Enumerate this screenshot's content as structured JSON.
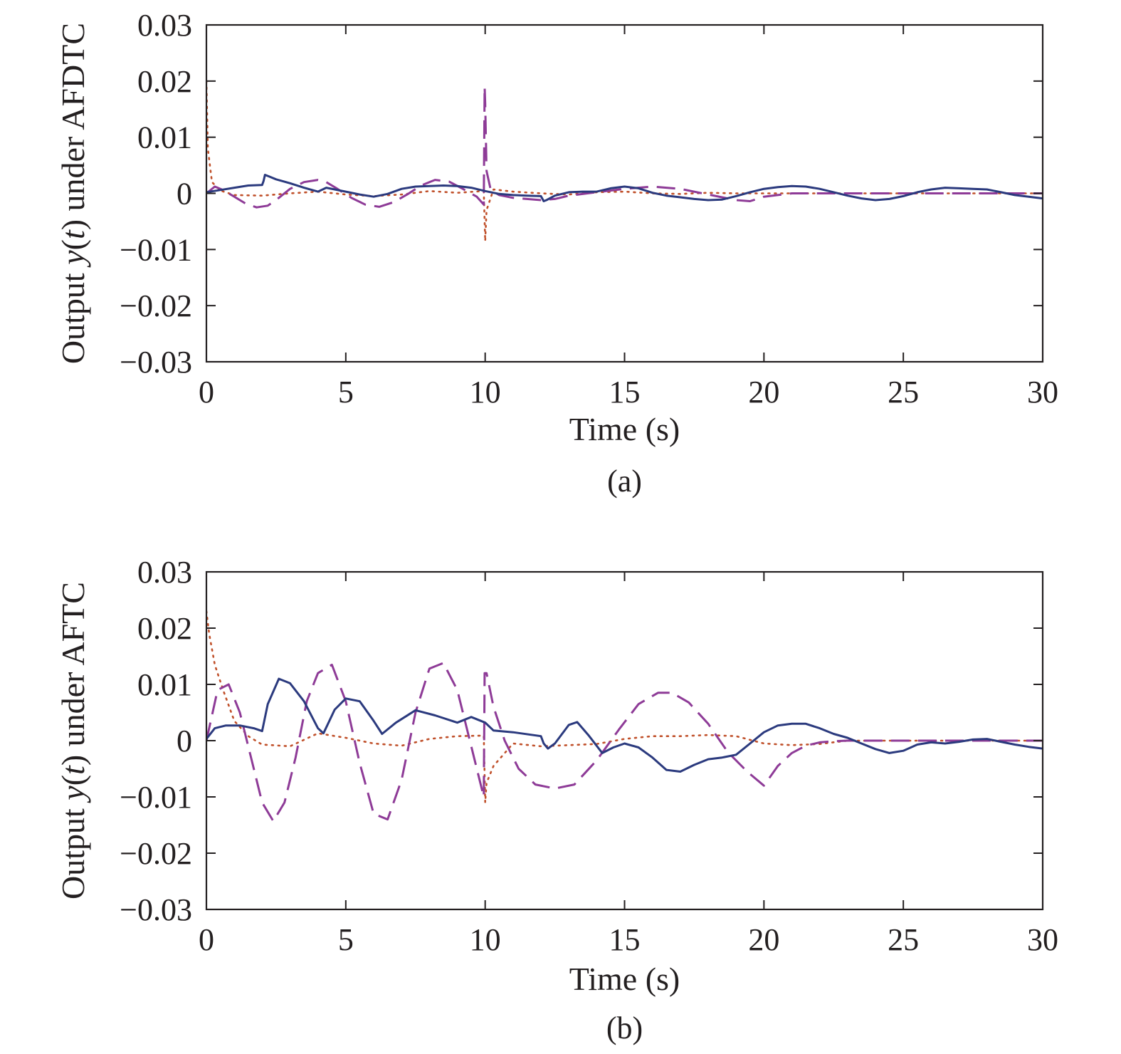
{
  "figure": {
    "panels": [
      {
        "caption": "(a)",
        "ylabel_prefix": "Output ",
        "ylabel_var": "y",
        "ylabel_open": "(",
        "ylabel_t": "t",
        "ylabel_suffix": ") under AFDTC"
      },
      {
        "caption": "(b)",
        "ylabel_prefix": "Output ",
        "ylabel_var": "y",
        "ylabel_open": "(",
        "ylabel_t": "t",
        "ylabel_suffix": ") under AFTC"
      }
    ]
  },
  "chart_data": [
    {
      "type": "line",
      "caption": "(a)",
      "xlabel": "Time (s)",
      "ylabel": "Output y(t) under AFDTC",
      "xlim": [
        0,
        30
      ],
      "ylim": [
        -0.03,
        0.03
      ],
      "xticks": [
        0,
        5,
        10,
        15,
        20,
        25,
        30
      ],
      "xtick_labels": [
        "0",
        "5",
        "10",
        "15",
        "20",
        "25",
        "30"
      ],
      "yticks": [
        0.03,
        0.02,
        0.01,
        0,
        -0.01,
        -0.02,
        -0.03
      ],
      "ytick_labels": [
        "0.03",
        "0.02",
        "0.01",
        "0",
        "−0.01",
        "−0.02",
        "−0.03"
      ],
      "grid": false,
      "series": [
        {
          "style": "solid",
          "color": "#2b3a7e",
          "x": [
            0,
            0.5,
            1,
            1.5,
            2,
            2.05,
            2.1,
            2.5,
            3,
            3.5,
            4,
            4.3,
            4.6,
            5,
            5.5,
            6,
            6.5,
            7,
            7.5,
            8,
            8.5,
            9,
            9.5,
            10,
            10.5,
            11,
            11.5,
            12,
            12.1,
            12.2,
            12.5,
            13,
            13.5,
            14,
            14.5,
            15,
            15.5,
            16,
            16.5,
            17,
            17.5,
            18,
            18.5,
            19,
            19.5,
            20,
            20.5,
            21,
            21.5,
            22,
            22.5,
            23,
            23.5,
            24,
            24.5,
            25,
            25.5,
            26,
            26.5,
            27,
            27.5,
            28,
            28.5,
            29,
            29.5,
            30
          ],
          "y": [
            0.0002,
            0.0006,
            0.001,
            0.0014,
            0.0015,
            0.0022,
            0.0033,
            0.0025,
            0.0018,
            0.001,
            0.0003,
            0.001,
            0.0007,
            0.0003,
            -0.0002,
            -0.0006,
            -0.0001,
            0.0008,
            0.0012,
            0.0013,
            0.0014,
            0.0013,
            0.001,
            0.0004,
            -0.0001,
            -0.0003,
            -0.0004,
            -0.0005,
            -0.0014,
            -0.0012,
            -0.0004,
            0.0002,
            0.0003,
            0.0003,
            0.0009,
            0.0012,
            0.0009,
            0.0001,
            -0.0004,
            -0.0007,
            -0.001,
            -0.0012,
            -0.0011,
            -0.0005,
            0.0002,
            0.0008,
            0.0011,
            0.0013,
            0.0012,
            0.0008,
            0.0002,
            -0.0004,
            -0.0009,
            -0.0012,
            -0.001,
            -0.0005,
            0.0002,
            0.0007,
            0.001,
            0.0009,
            0.0008,
            0.0007,
            0.0002,
            -0.0003,
            -0.0006,
            -0.0009
          ]
        },
        {
          "style": "dashed",
          "color": "#8e3b97",
          "x": [
            0,
            0.3,
            0.6,
            1,
            1.4,
            1.8,
            2.2,
            2.6,
            3,
            3.5,
            4,
            4.3,
            4.7,
            5.2,
            5.7,
            6.2,
            6.7,
            7.2,
            7.7,
            8.2,
            8.7,
            9.2,
            9.7,
            9.95,
            9.98,
            10,
            10.05,
            10.2,
            10.5,
            11,
            11.5,
            12,
            12.5,
            13,
            14,
            15,
            16,
            17,
            18,
            19,
            19.5,
            20,
            21,
            22,
            25,
            30
          ],
          "y": [
            0,
            0.0012,
            0.0006,
            -0.0006,
            -0.0018,
            -0.0025,
            -0.0022,
            -0.0008,
            0.0008,
            0.002,
            0.0024,
            0.002,
            0.0008,
            -0.0008,
            -0.002,
            -0.0024,
            -0.0016,
            -0.0002,
            0.0014,
            0.0024,
            0.0021,
            0.0008,
            -0.0006,
            -0.002,
            0.019,
            0.016,
            0.004,
            0.0006,
            -0.0003,
            -0.0008,
            -0.001,
            -0.0012,
            -0.001,
            -0.0004,
            0.0002,
            0.0008,
            0.0012,
            0.0008,
            -0.0002,
            -0.0012,
            -0.0014,
            -0.0006,
            0,
            0,
            0,
            0
          ]
        },
        {
          "style": "dotted",
          "color": "#c0502a",
          "x": [
            0,
            0.05,
            0.2,
            0.5,
            1,
            2,
            3,
            4,
            5,
            6,
            7,
            8,
            9,
            9.95,
            10,
            10.05,
            10.3,
            11,
            12,
            13,
            14,
            15,
            16,
            17,
            18,
            19,
            20,
            21,
            22,
            23,
            24,
            25,
            26,
            27,
            28,
            29,
            30
          ],
          "y": [
            0.02,
            0.008,
            0.002,
            0.0005,
            -0.0003,
            -0.0004,
            0,
            0.0003,
            -0.0002,
            -0.0005,
            -0.0002,
            0.0004,
            0.0001,
            0.0004,
            -0.0085,
            -0.003,
            0.0007,
            0.0003,
            0,
            -0.0002,
            0.0002,
            0.0003,
            0,
            -0.0001,
            0.0001,
            0,
            0,
            0,
            0,
            0,
            0,
            0,
            0,
            0,
            0,
            0,
            0
          ]
        }
      ]
    },
    {
      "type": "line",
      "caption": "(b)",
      "xlabel": "Time (s)",
      "ylabel": "Output y(t) under AFTC",
      "xlim": [
        0,
        30
      ],
      "ylim": [
        -0.03,
        0.03
      ],
      "xticks": [
        0,
        5,
        10,
        15,
        20,
        25,
        30
      ],
      "xtick_labels": [
        "0",
        "5",
        "10",
        "15",
        "20",
        "25",
        "30"
      ],
      "yticks": [
        0.03,
        0.02,
        0.01,
        0,
        -0.01,
        -0.02,
        -0.03
      ],
      "ytick_labels": [
        "0.03",
        "0.02",
        "0.01",
        "0",
        "−0.01",
        "−0.02",
        "−0.03"
      ],
      "grid": false,
      "series": [
        {
          "style": "solid",
          "color": "#2b3a7e",
          "x": [
            0,
            0.3,
            0.7,
            1.2,
            1.7,
            2,
            2.2,
            2.6,
            3,
            3.5,
            4,
            4.2,
            4.6,
            5,
            5.5,
            6,
            6.3,
            6.8,
            7.5,
            8.2,
            9,
            9.5,
            10,
            10.3,
            11,
            12,
            12.1,
            12.25,
            12.5,
            13,
            13.3,
            13.7,
            14.2,
            14.6,
            15,
            15.5,
            16,
            16.5,
            17,
            17.5,
            18,
            18.5,
            19,
            19.5,
            20,
            20.5,
            21,
            21.5,
            22,
            22.5,
            23,
            23.5,
            24,
            24.5,
            25,
            25.5,
            26,
            26.5,
            27,
            27.5,
            28,
            28.5,
            29,
            29.5,
            30
          ],
          "y": [
            0.0003,
            0.0022,
            0.0027,
            0.0027,
            0.0022,
            0.0017,
            0.0065,
            0.011,
            0.0102,
            0.007,
            0.0022,
            0.0013,
            0.0055,
            0.0075,
            0.007,
            0.0035,
            0.0012,
            0.0032,
            0.0054,
            0.0045,
            0.0032,
            0.0042,
            0.0032,
            0.0018,
            0.0015,
            0.0008,
            -0.0005,
            -0.0014,
            -0.0005,
            0.0028,
            0.0033,
            0.001,
            -0.0022,
            -0.0012,
            -0.0005,
            -0.0012,
            -0.003,
            -0.0052,
            -0.0055,
            -0.0043,
            -0.0033,
            -0.003,
            -0.0025,
            -0.0005,
            0.0015,
            0.0027,
            0.003,
            0.003,
            0.0022,
            0.0012,
            0.0005,
            -0.0005,
            -0.0015,
            -0.0022,
            -0.0018,
            -0.0007,
            -0.0003,
            -0.0005,
            -0.0002,
            0.0002,
            0.0003,
            -0.0002,
            -0.0007,
            -0.0011,
            -0.0014
          ]
        },
        {
          "style": "dashed",
          "color": "#8e3b97",
          "x": [
            0,
            0.4,
            0.8,
            1.2,
            1.6,
            2,
            2.4,
            2.8,
            3.2,
            3.6,
            4,
            4.5,
            5,
            5.5,
            6,
            6.5,
            7,
            7.5,
            8,
            8.5,
            9,
            9.5,
            9.95,
            9.98,
            10.05,
            10.3,
            10.7,
            11.2,
            11.8,
            12.5,
            13.2,
            14,
            14.8,
            15.5,
            16.2,
            16.7,
            17.3,
            18,
            18.7,
            19.4,
            20,
            20.5,
            21,
            21.5,
            22,
            22.5,
            23,
            25,
            30
          ],
          "y": [
            0,
            0.009,
            0.01,
            0.005,
            -0.003,
            -0.011,
            -0.0143,
            -0.011,
            -0.003,
            0.007,
            0.012,
            0.0135,
            0.007,
            -0.004,
            -0.013,
            -0.014,
            -0.007,
            0.005,
            0.0128,
            0.0138,
            0.009,
            -0.001,
            -0.01,
            0.012,
            0.012,
            0.006,
            0,
            -0.005,
            -0.0078,
            -0.0085,
            -0.0078,
            -0.0035,
            0.002,
            0.0065,
            0.0085,
            0.0085,
            0.0068,
            0.003,
            -0.002,
            -0.0055,
            -0.008,
            -0.0045,
            -0.0022,
            -0.0009,
            -0.0003,
            -0.0001,
            0,
            0,
            0
          ]
        },
        {
          "style": "dotted",
          "color": "#c0502a",
          "x": [
            0,
            0.1,
            0.3,
            0.6,
            1,
            1.5,
            2,
            3,
            4,
            5,
            6,
            7,
            8,
            9,
            9.95,
            10,
            10.05,
            10.3,
            11,
            12,
            13,
            14,
            15,
            16,
            17,
            18,
            19,
            20,
            21,
            22,
            23,
            24,
            25,
            26,
            27,
            28,
            29,
            30
          ],
          "y": [
            0.023,
            0.019,
            0.0135,
            0.009,
            0.0035,
            0.0008,
            -0.0007,
            -0.001,
            0.0013,
            0.0005,
            -0.0005,
            -0.0009,
            0.0003,
            0.0008,
            0.0009,
            -0.011,
            -0.0075,
            -0.0045,
            -0.0005,
            -0.001,
            -0.0008,
            -0.0006,
            0.0003,
            0.0008,
            0.0008,
            0.001,
            0.0008,
            -0.0005,
            -0.0008,
            -0.0006,
            0,
            0,
            0,
            0,
            0,
            0,
            0,
            0
          ]
        }
      ]
    }
  ]
}
